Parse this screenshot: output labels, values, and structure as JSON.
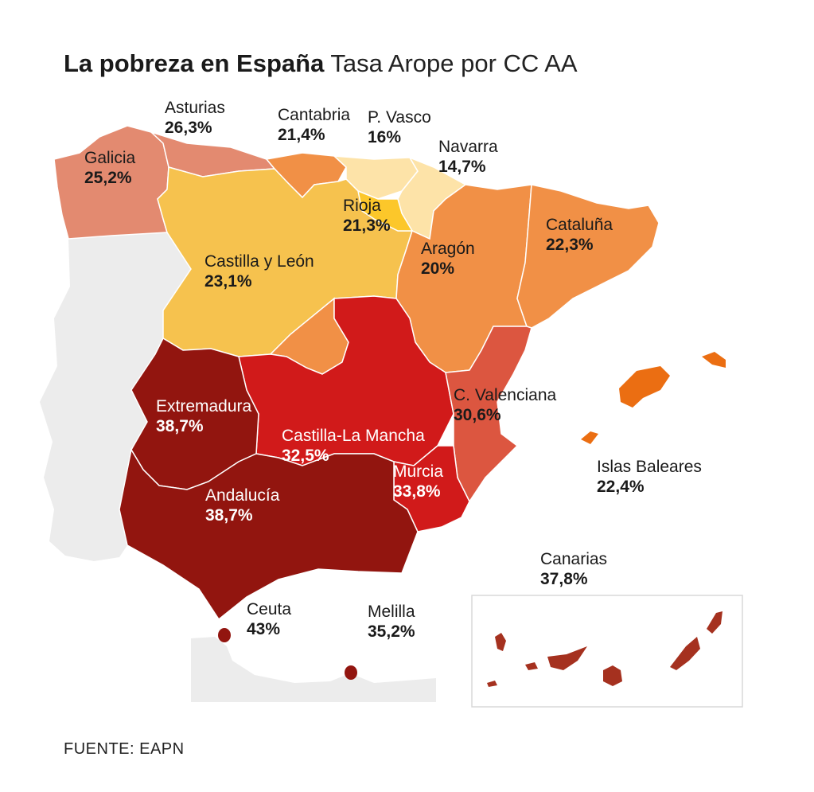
{
  "title": {
    "main": "La pobreza en España",
    "subtitle": "Tasa Arope por CC AA"
  },
  "source": "FUENTE: EAPN",
  "colors": {
    "background_land": "#ececec",
    "scale_lightest": "#fde3a8",
    "scale_light": "#f6c24e",
    "scale_yellow": "#fcc72a",
    "scale_orange": "#f19046",
    "scale_orange_bright": "#eb6e12",
    "scale_salmon": "#e38a70",
    "scale_red_orange": "#dc5640",
    "scale_red": "#d11a1a",
    "scale_dark_red": "#92150f",
    "canarias": "#a5311f"
  },
  "regions": [
    {
      "id": "galicia",
      "name": "Galicia",
      "value": "25,2%"
    },
    {
      "id": "asturias",
      "name": "Asturias",
      "value": "26,3%"
    },
    {
      "id": "cantabria",
      "name": "Cantabria",
      "value": "21,4%"
    },
    {
      "id": "pvasco",
      "name": "P. Vasco",
      "value": "16%"
    },
    {
      "id": "navarra",
      "name": "Navarra",
      "value": "14,7%"
    },
    {
      "id": "rioja",
      "name": "Rioja",
      "value": "21,3%"
    },
    {
      "id": "cataluna",
      "name": "Cataluña",
      "value": "22,3%"
    },
    {
      "id": "aragon",
      "name": "Aragón",
      "value": "20%"
    },
    {
      "id": "castilla_leon",
      "name": "Castilla y León",
      "value": "23,1%"
    },
    {
      "id": "extremadura",
      "name": "Extremadura",
      "value": "38,7%"
    },
    {
      "id": "castilla_mancha",
      "name": "Castilla-La Mancha",
      "value": "32,5%"
    },
    {
      "id": "valenciana",
      "name": "C. Valenciana",
      "value": "30,6%"
    },
    {
      "id": "murcia",
      "name": "Murcia",
      "value": "33,8%"
    },
    {
      "id": "andalucia",
      "name": "Andalucía",
      "value": "38,7%"
    },
    {
      "id": "baleares",
      "name": "Islas Baleares",
      "value": "22,4%"
    },
    {
      "id": "canarias",
      "name": "Canarias",
      "value": "37,8%"
    },
    {
      "id": "ceuta",
      "name": "Ceuta",
      "value": "43%"
    },
    {
      "id": "melilla",
      "name": "Melilla",
      "value": "35,2%"
    }
  ]
}
